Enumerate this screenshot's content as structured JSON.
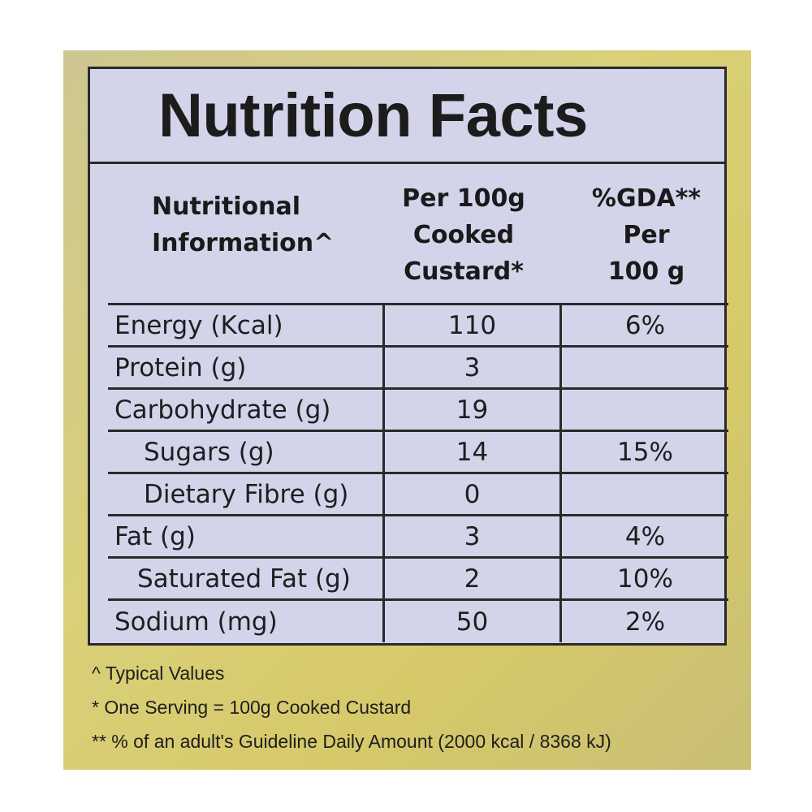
{
  "title": "Nutrition Facts",
  "header": {
    "col1": "Nutritional Information^",
    "col1_line1": "Nutritional",
    "col1_line2": "Information^",
    "col2_line1": "Per 100g",
    "col2_line2": "Cooked",
    "col2_line3": "Custard*",
    "col3_line1": "%GDA**",
    "col3_line2": "Per",
    "col3_line3": "100 g"
  },
  "rows": [
    {
      "label": "Energy (Kcal)",
      "per100g": "110",
      "gda": "6%"
    },
    {
      "label": "Protein (g)",
      "per100g": "3",
      "gda": ""
    },
    {
      "label": "Carbohydrate (g)",
      "per100g": "19",
      "gda": ""
    },
    {
      "label": "Sugars (g)",
      "per100g": "14",
      "gda": "15%"
    },
    {
      "label": "Dietary Fibre (g)",
      "per100g": "0",
      "gda": ""
    },
    {
      "label": "Fat (g)",
      "per100g": "3",
      "gda": "4%"
    },
    {
      "label": "Saturated Fat (g)",
      "per100g": "2",
      "gda": "10%"
    },
    {
      "label": "Sodium (mg)",
      "per100g": "50",
      "gda": "2%"
    }
  ],
  "notes": [
    "^ Typical Values",
    "* One Serving = 100g Cooked Custard",
    "** % of an adult's Guideline Daily Amount (2000 kcal / 8368 kJ)"
  ],
  "colors": {
    "panel": "#d3d4ea",
    "packaging": "#d6c96a",
    "ink": "#1c1c1c"
  }
}
